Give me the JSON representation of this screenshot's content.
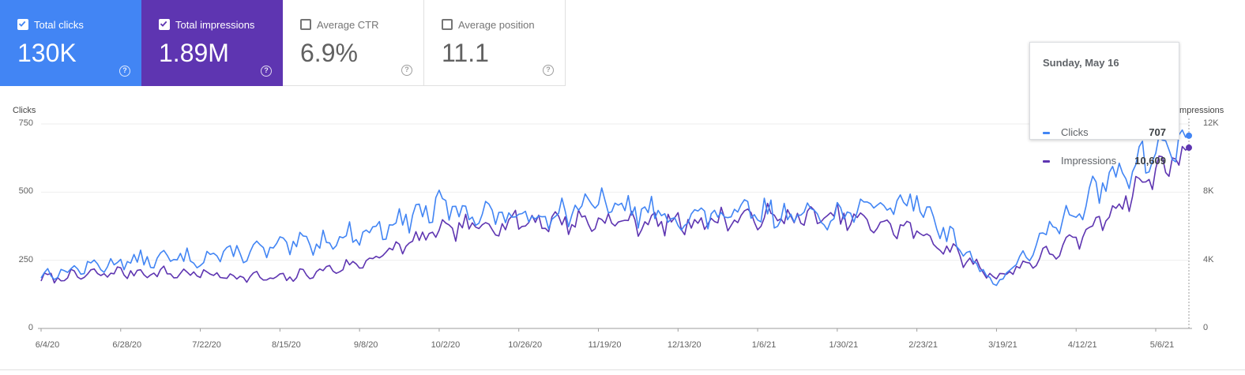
{
  "metrics": {
    "total_clicks": {
      "label": "Total clicks",
      "value": "130K",
      "checked": true,
      "color": "#4285f4"
    },
    "total_impressions": {
      "label": "Total impressions",
      "value": "1.89M",
      "checked": true,
      "color": "#5e35b1"
    },
    "average_ctr": {
      "label": "Average CTR",
      "value": "6.9%",
      "checked": false
    },
    "average_position": {
      "label": "Average position",
      "value": "11.1",
      "checked": false
    },
    "help_glyph": "?"
  },
  "tooltip": {
    "date": "Sunday, May 16",
    "rows": [
      {
        "name": "Clicks",
        "value": "707",
        "color": "#4285f4"
      },
      {
        "name": "Impressions",
        "value": "10,609",
        "color": "#5e35b1"
      }
    ]
  },
  "chart_data": {
    "type": "line",
    "left_axis_title": "Clicks",
    "right_axis_title": "Impressions",
    "left_ticks": [
      "750",
      "500",
      "250",
      "0"
    ],
    "right_ticks": [
      "12K",
      "8K",
      "4K",
      "0"
    ],
    "x_tick_labels": [
      "6/4/20",
      "6/28/20",
      "7/22/20",
      "8/15/20",
      "9/8/20",
      "10/2/20",
      "10/26/20",
      "11/19/20",
      "12/13/20",
      "1/6/21",
      "1/30/21",
      "2/23/21",
      "3/19/21",
      "4/12/21",
      "5/6/21"
    ],
    "left_ylim": [
      0,
      750
    ],
    "right_ylim": [
      0,
      12000
    ],
    "series": [
      {
        "name": "Clicks",
        "axis": "left",
        "color": "#4285f4",
        "x": [
          "6/4/20",
          "6/28/20",
          "7/22/20",
          "8/15/20",
          "9/8/20",
          "10/2/20",
          "10/26/20",
          "11/19/20",
          "12/13/20",
          "1/6/21",
          "1/30/21",
          "2/23/21",
          "3/19/21",
          "4/12/21",
          "5/6/21",
          "5/16/21"
        ],
        "values": [
          195,
          245,
          260,
          295,
          345,
          445,
          405,
          455,
          405,
          420,
          420,
          470,
          160,
          450,
          650,
          707
        ]
      },
      {
        "name": "Impressions",
        "axis": "right",
        "color": "#5e35b1",
        "x": [
          "6/4/20",
          "6/28/20",
          "7/22/20",
          "8/15/20",
          "9/8/20",
          "10/2/20",
          "10/26/20",
          "11/19/20",
          "12/13/20",
          "1/6/21",
          "1/30/21",
          "2/23/21",
          "3/19/21",
          "4/12/21",
          "5/6/21",
          "5/16/21"
        ],
        "values": [
          2900,
          3300,
          3200,
          2900,
          3800,
          5700,
          6300,
          6300,
          6200,
          6500,
          6500,
          5700,
          3000,
          5100,
          9200,
          10609
        ]
      }
    ],
    "grid": true,
    "legend": "none"
  }
}
